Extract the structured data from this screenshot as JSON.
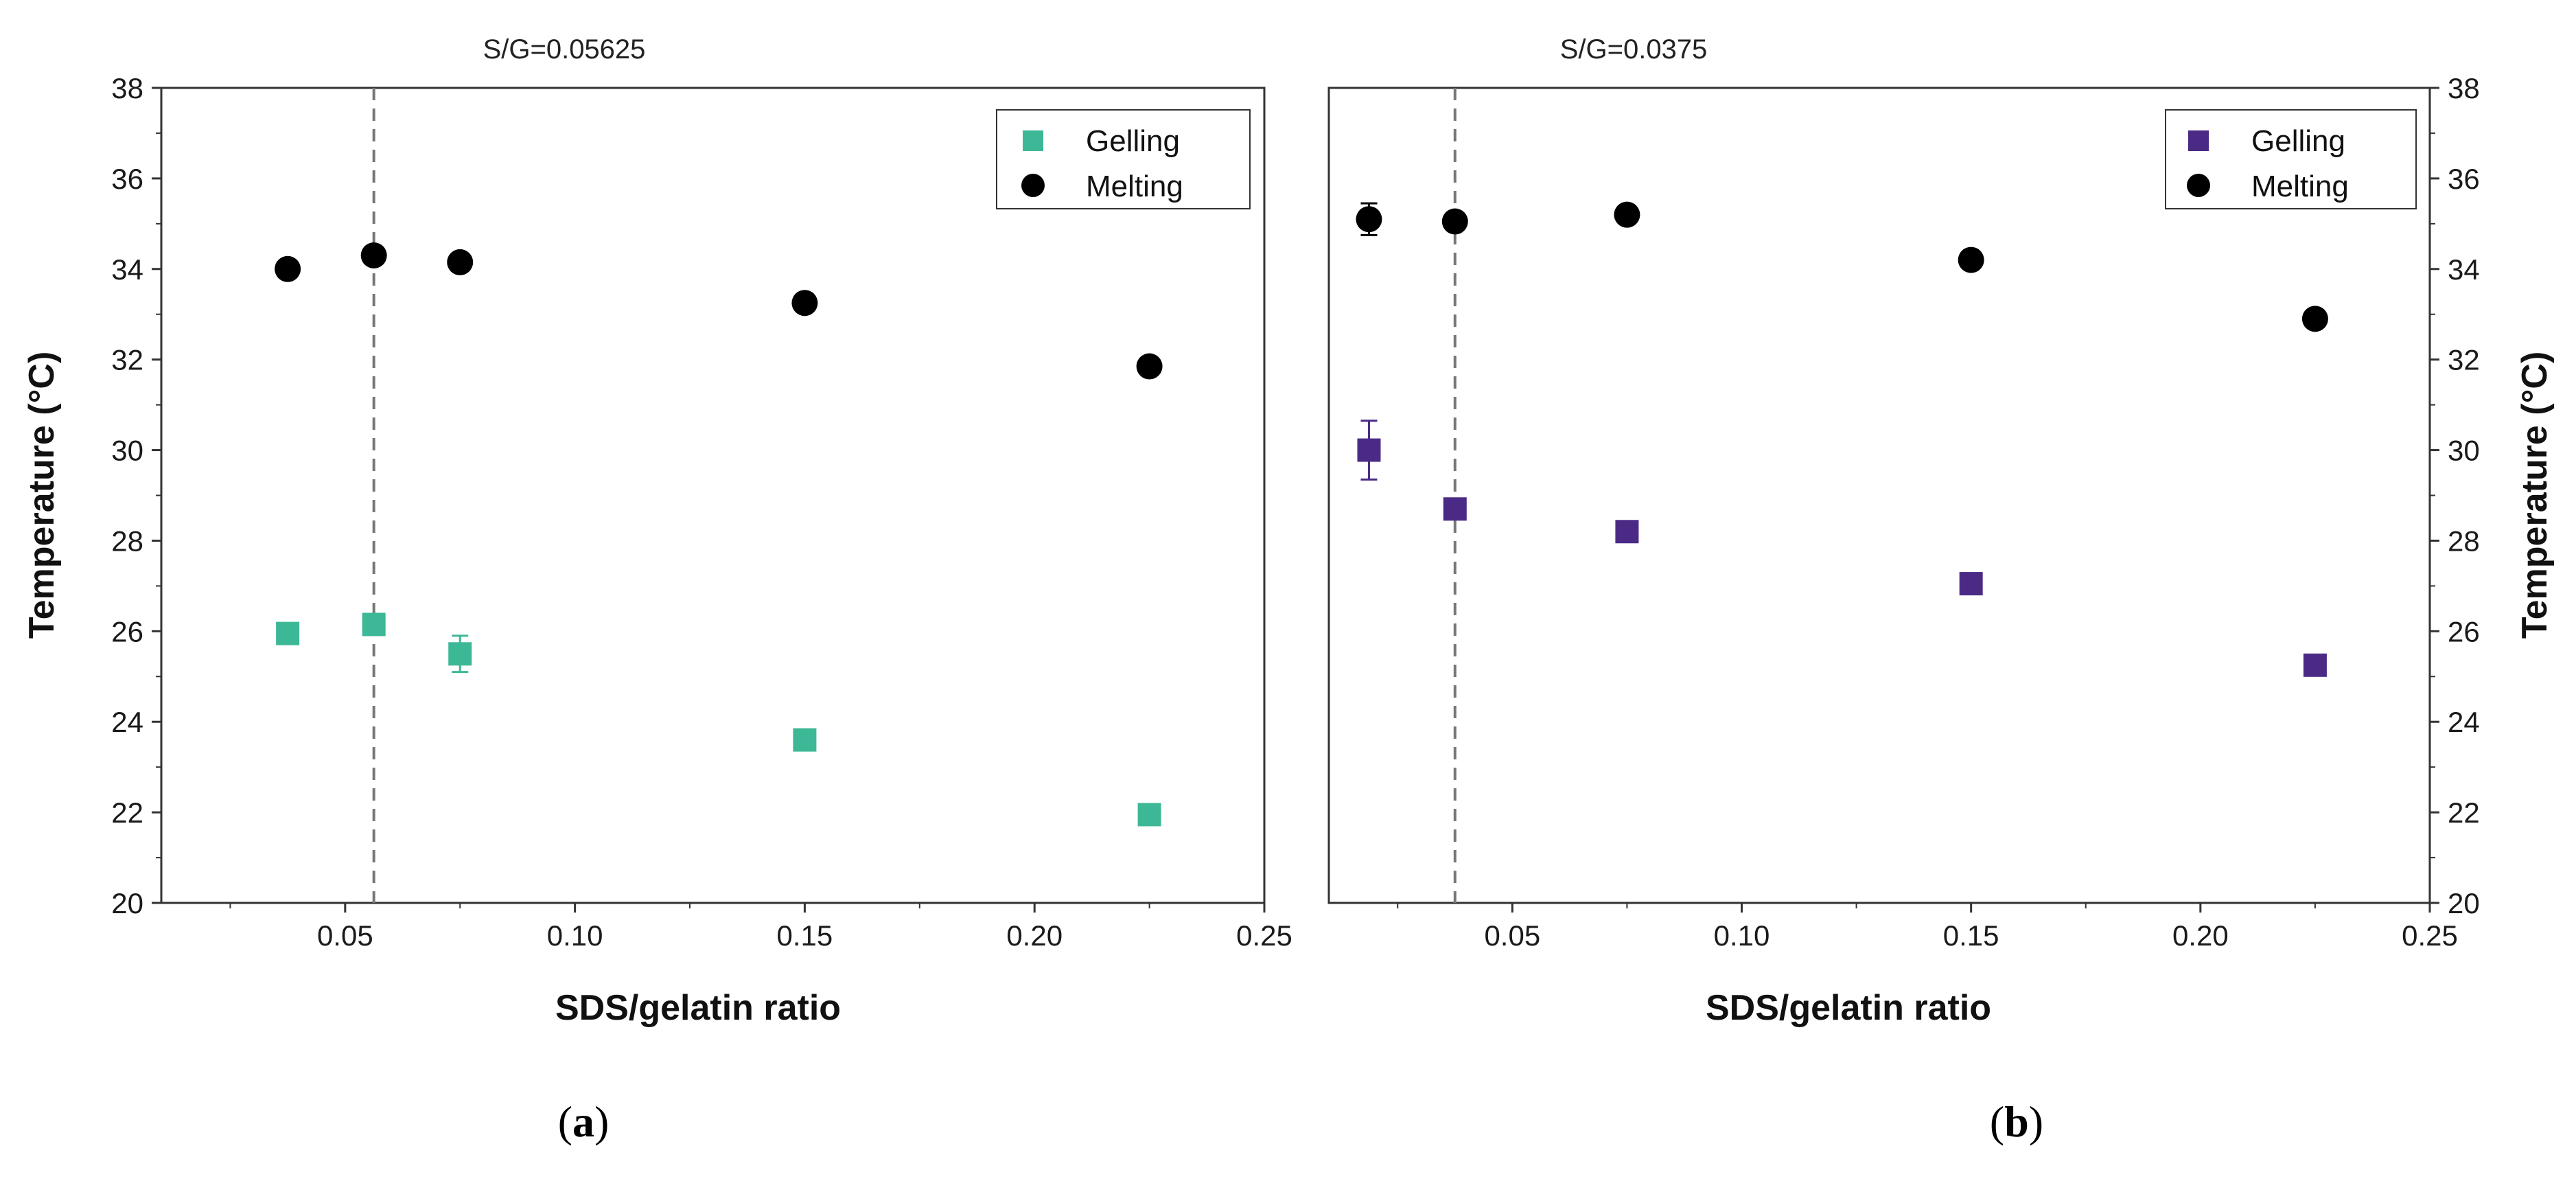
{
  "colors": {
    "gelling_a": "#3DB896",
    "gelling_b": "#4B2A86",
    "melting": "#000000",
    "axis": "#333333",
    "dashed": "#777777"
  },
  "chart_data": [
    {
      "type": "scatter",
      "panel": "a",
      "panel_label": {
        "open": "(",
        "letter": "a",
        "close": ")"
      },
      "annotation": "S/G=0.05625",
      "vline_x": 0.05625,
      "xlabel": "SDS/gelatin ratio",
      "ylabel": "Temperature (°C)",
      "ylabel_side": "left",
      "xlim": [
        0.01,
        0.25
      ],
      "ylim": [
        20,
        38
      ],
      "xticks": [
        "0.05",
        "0.10",
        "0.15",
        "0.20",
        "0.25"
      ],
      "xtick_values": [
        0.05,
        0.1,
        0.15,
        0.2,
        0.25
      ],
      "yticks": [
        "20",
        "22",
        "24",
        "26",
        "28",
        "30",
        "32",
        "34",
        "36",
        "38"
      ],
      "ytick_values": [
        20,
        22,
        24,
        26,
        28,
        30,
        32,
        34,
        36,
        38
      ],
      "legend_position": "top-right",
      "series": [
        {
          "name": "Gelling",
          "marker": "square",
          "color": "#3DB896",
          "points": [
            {
              "x": 0.0375,
              "y": 25.95,
              "err": 0.15
            },
            {
              "x": 0.05625,
              "y": 26.15,
              "err": 0.15
            },
            {
              "x": 0.075,
              "y": 25.5,
              "err": 0.4
            },
            {
              "x": 0.15,
              "y": 23.6,
              "err": 0.1
            },
            {
              "x": 0.225,
              "y": 21.95,
              "err": 0.1
            }
          ]
        },
        {
          "name": "Melting",
          "marker": "circle",
          "color": "#000000",
          "points": [
            {
              "x": 0.0375,
              "y": 34.0,
              "err": 0.1
            },
            {
              "x": 0.05625,
              "y": 34.3,
              "err": 0.1
            },
            {
              "x": 0.075,
              "y": 34.15,
              "err": 0.1
            },
            {
              "x": 0.15,
              "y": 33.25,
              "err": 0.1
            },
            {
              "x": 0.225,
              "y": 31.85,
              "err": 0.1
            }
          ]
        }
      ]
    },
    {
      "type": "scatter",
      "panel": "b",
      "panel_label": {
        "open": "(",
        "letter": "b",
        "close": ")"
      },
      "annotation": "S/G=0.0375",
      "vline_x": 0.0375,
      "xlabel": "SDS/gelatin ratio",
      "ylabel": "Temperature (°C)",
      "ylabel_side": "right",
      "xlim": [
        0.01,
        0.25
      ],
      "ylim": [
        20,
        38
      ],
      "xticks": [
        "0.05",
        "0.10",
        "0.15",
        "0.20",
        "0.25"
      ],
      "xtick_values": [
        0.05,
        0.1,
        0.15,
        0.2,
        0.25
      ],
      "yticks": [
        "20",
        "22",
        "24",
        "26",
        "28",
        "30",
        "32",
        "34",
        "36",
        "38"
      ],
      "ytick_values": [
        20,
        22,
        24,
        26,
        28,
        30,
        32,
        34,
        36,
        38
      ],
      "legend_position": "top-right",
      "series": [
        {
          "name": "Gelling",
          "marker": "square",
          "color": "#4B2A86",
          "points": [
            {
              "x": 0.01875,
              "y": 30.0,
              "err": 0.65
            },
            {
              "x": 0.0375,
              "y": 28.7,
              "err": 0.15
            },
            {
              "x": 0.075,
              "y": 28.2,
              "err": 0.15
            },
            {
              "x": 0.15,
              "y": 27.05,
              "err": 0.15
            },
            {
              "x": 0.225,
              "y": 25.25,
              "err": 0.1
            }
          ]
        },
        {
          "name": "Melting",
          "marker": "circle",
          "color": "#000000",
          "points": [
            {
              "x": 0.01875,
              "y": 35.1,
              "err": 0.35
            },
            {
              "x": 0.0375,
              "y": 35.05,
              "err": 0.1
            },
            {
              "x": 0.075,
              "y": 35.2,
              "err": 0.1
            },
            {
              "x": 0.15,
              "y": 34.2,
              "err": 0.1
            },
            {
              "x": 0.225,
              "y": 32.9,
              "err": 0.1
            }
          ]
        }
      ]
    }
  ]
}
